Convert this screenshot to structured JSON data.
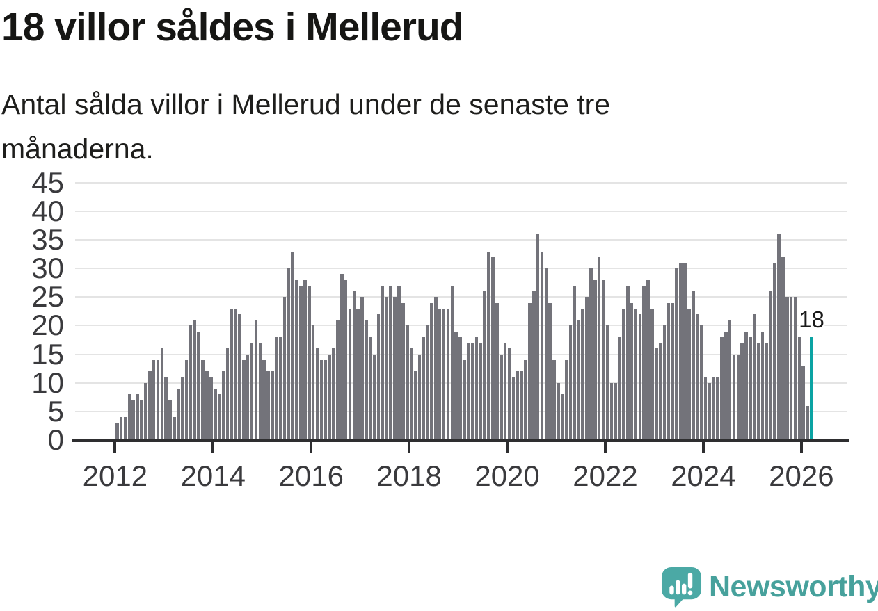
{
  "header": {
    "title": "18 villor såldes i Mellerud",
    "subtitle": "Antal sålda villor i Mellerud under de senaste tre månaderna."
  },
  "chart_data": {
    "type": "bar",
    "title": "18 villor såldes i Mellerud",
    "subtitle": "Antal sålda villor i Mellerud under de senaste tre månaderna.",
    "xlabel": "",
    "ylabel": "",
    "frequency": "monthly",
    "x_start": "2012-01",
    "x_end": "2026-03",
    "ylim": [
      0,
      45
    ],
    "yticks": [
      0,
      5,
      10,
      15,
      20,
      25,
      30,
      35,
      40,
      45
    ],
    "xtick_years": [
      2012,
      2014,
      2016,
      2018,
      2020,
      2022,
      2024,
      2026
    ],
    "grid": "horizontal",
    "legend": "none",
    "bar_color": "#73737a",
    "highlight_color": "#0ba3a3",
    "highlight_index": "last",
    "annotation": {
      "text": "18",
      "attached_to": "last-bar"
    },
    "values": [
      3,
      4,
      4,
      8,
      7,
      8,
      7,
      10,
      12,
      14,
      14,
      16,
      11,
      7,
      4,
      9,
      11,
      14,
      20,
      21,
      19,
      14,
      12,
      11,
      9,
      8,
      12,
      16,
      23,
      23,
      22,
      14,
      15,
      17,
      21,
      17,
      14,
      12,
      12,
      18,
      18,
      25,
      30,
      33,
      28,
      27,
      28,
      27,
      20,
      16,
      14,
      14,
      15,
      16,
      21,
      29,
      28,
      23,
      26,
      23,
      25,
      21,
      18,
      15,
      22,
      27,
      25,
      27,
      25,
      27,
      24,
      20,
      16,
      12,
      15,
      18,
      20,
      24,
      25,
      23,
      23,
      23,
      27,
      19,
      18,
      14,
      17,
      17,
      18,
      17,
      26,
      33,
      32,
      24,
      15,
      17,
      16,
      11,
      12,
      12,
      14,
      24,
      26,
      36,
      33,
      30,
      24,
      14,
      10,
      8,
      14,
      20,
      27,
      21,
      23,
      25,
      30,
      28,
      32,
      28,
      20,
      10,
      10,
      18,
      23,
      27,
      24,
      23,
      22,
      27,
      28,
      23,
      16,
      17,
      20,
      24,
      24,
      30,
      31,
      31,
      23,
      26,
      22,
      20,
      11,
      10,
      11,
      11,
      18,
      19,
      21,
      15,
      15,
      17,
      19,
      18,
      22,
      17,
      19,
      17,
      26,
      31,
      36,
      32,
      25,
      25,
      25,
      18,
      13,
      6,
      18
    ]
  },
  "footer": {
    "brand": "Newsworthy",
    "logo_icon": "speech-bubble-bar-chart-icon",
    "brand_color": "#47a19c",
    "icon_color": "#4ba9a5"
  }
}
